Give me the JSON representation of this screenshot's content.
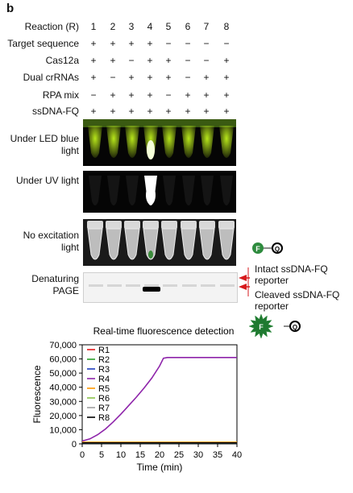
{
  "panel_letter": "b",
  "table": {
    "header_label": "Reaction (R)",
    "columns": [
      "1",
      "2",
      "3",
      "4",
      "5",
      "6",
      "7",
      "8"
    ],
    "rows": [
      {
        "label": "Target sequence",
        "values": [
          "+",
          "+",
          "+",
          "+",
          "−",
          "−",
          "−",
          "−"
        ]
      },
      {
        "label": "Cas12a",
        "values": [
          "+",
          "+",
          "−",
          "+",
          "+",
          "−",
          "−",
          "+"
        ]
      },
      {
        "label": "Dual crRNAs",
        "values": [
          "+",
          "−",
          "+",
          "+",
          "+",
          "−",
          "+",
          "+"
        ]
      },
      {
        "label": "RPA mix",
        "values": [
          "−",
          "+",
          "+",
          "+",
          "−",
          "+",
          "+",
          "+"
        ]
      },
      {
        "label": "ssDNA-FQ",
        "values": [
          "+",
          "+",
          "+",
          "+",
          "+",
          "+",
          "+",
          "+"
        ]
      }
    ]
  },
  "images": {
    "led_label": "Under LED blue light",
    "uv_label": "Under UV light",
    "noex_label": "No excitation light",
    "page_label": "Denaturing PAGE"
  },
  "reporter": {
    "intact_label": "Intact ssDNA-FQ reporter",
    "cleaved_label": "Cleaved ssDNA-FQ reporter",
    "f_letter": "F",
    "q_letter": "Q",
    "fluor_color": "#2e8b3e",
    "arrow_color": "#d7191c"
  },
  "colors": {
    "led_glow": "#b6e51a",
    "led_bright": "#f4ffd8",
    "strip_bg": "#050505"
  },
  "chart_data": {
    "type": "line",
    "title": "Real-time fluorescence detection",
    "xlabel": "Time (min)",
    "ylabel": "Fluorescence",
    "xlim": [
      0,
      40
    ],
    "ylim": [
      0,
      70000
    ],
    "xticks": [
      0,
      5,
      10,
      15,
      20,
      25,
      30,
      35,
      40
    ],
    "yticks": [
      0,
      10000,
      20000,
      30000,
      40000,
      50000,
      60000,
      70000
    ],
    "ytick_labels": [
      "0",
      "10,000",
      "20,000",
      "30,000",
      "40,000",
      "50,000",
      "60,000",
      "70,000"
    ],
    "legend_position": "upper-left",
    "series": [
      {
        "name": "R1",
        "color": "#e41a1c",
        "x": [
          0,
          40
        ],
        "y": [
          800,
          800
        ]
      },
      {
        "name": "R2",
        "color": "#2ca02c",
        "x": [
          0,
          40
        ],
        "y": [
          700,
          700
        ]
      },
      {
        "name": "R3",
        "color": "#1f3fbf",
        "x": [
          0,
          40
        ],
        "y": [
          700,
          700
        ]
      },
      {
        "name": "R4",
        "color": "#8e24aa",
        "x": [
          0,
          2,
          4,
          6,
          8,
          10,
          12,
          14,
          16,
          18,
          20,
          21,
          22,
          25,
          30,
          35,
          40
        ],
        "y": [
          2000,
          3500,
          6500,
          10500,
          15500,
          21000,
          27000,
          33000,
          39500,
          46500,
          55000,
          60500,
          61000,
          61000,
          61000,
          61000,
          61000
        ]
      },
      {
        "name": "R5",
        "color": "#ff9800",
        "x": [
          0,
          40
        ],
        "y": [
          1200,
          1200
        ]
      },
      {
        "name": "R6",
        "color": "#8bc34a",
        "x": [
          0,
          40
        ],
        "y": [
          700,
          700
        ]
      },
      {
        "name": "R7",
        "color": "#9e9e9e",
        "x": [
          0,
          40
        ],
        "y": [
          700,
          700
        ]
      },
      {
        "name": "R8",
        "color": "#000000",
        "x": [
          0,
          40
        ],
        "y": [
          700,
          700
        ]
      }
    ]
  }
}
